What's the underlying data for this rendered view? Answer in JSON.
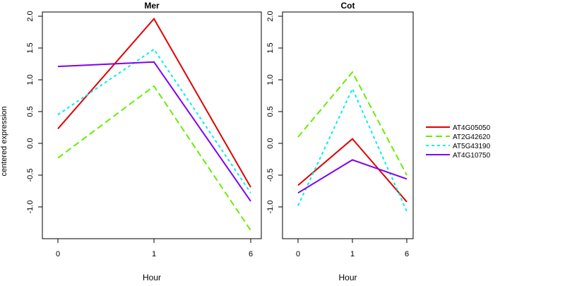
{
  "chart_data": {
    "type": "line",
    "shared_y_label": "centered expression",
    "panels": [
      {
        "title": "Mer",
        "xlabel": "Hour",
        "categories": [
          "0",
          "1",
          "6"
        ],
        "ylim": [
          -1.45,
          2.1
        ],
        "yticks": [
          "-1.0",
          "-0.5",
          "0.0",
          "0.5",
          "1.0",
          "1.5",
          "2.0"
        ],
        "series": [
          {
            "name": "AT4G05050",
            "values": [
              0.23,
              1.96,
              -0.69
            ]
          },
          {
            "name": "AT2G42620",
            "values": [
              -0.23,
              0.9,
              -1.37
            ]
          },
          {
            "name": "AT5G43190",
            "values": [
              0.45,
              1.48,
              -0.78
            ]
          },
          {
            "name": "AT4G10750",
            "values": [
              1.21,
              1.28,
              -0.91
            ]
          }
        ]
      },
      {
        "title": "Cot",
        "xlabel": "Hour",
        "categories": [
          "0",
          "1",
          "6"
        ],
        "ylim": [
          -1.45,
          2.1
        ],
        "yticks": [
          "-1.0",
          "-0.5",
          "0.0",
          "0.5",
          "1.0",
          "1.5",
          "2.0"
        ],
        "series": [
          {
            "name": "AT4G05050",
            "values": [
              -0.66,
              0.07,
              -0.92
            ]
          },
          {
            "name": "AT2G42620",
            "values": [
              0.1,
              1.12,
              -0.5
            ]
          },
          {
            "name": "AT5G43190",
            "values": [
              -0.98,
              0.86,
              -1.07
            ]
          },
          {
            "name": "AT4G10750",
            "values": [
              -0.78,
              -0.26,
              -0.56
            ]
          }
        ]
      }
    ],
    "legend": {
      "placement": "right",
      "entries": [
        {
          "name": "AT4G05050",
          "color": "#e00000",
          "dash": "solid"
        },
        {
          "name": "AT2G42620",
          "color": "#66ee00",
          "dash": "dashed"
        },
        {
          "name": "AT5G43190",
          "color": "#00eeee",
          "dash": "dotted"
        },
        {
          "name": "AT4G10750",
          "color": "#8000ee",
          "dash": "solid"
        }
      ]
    }
  }
}
